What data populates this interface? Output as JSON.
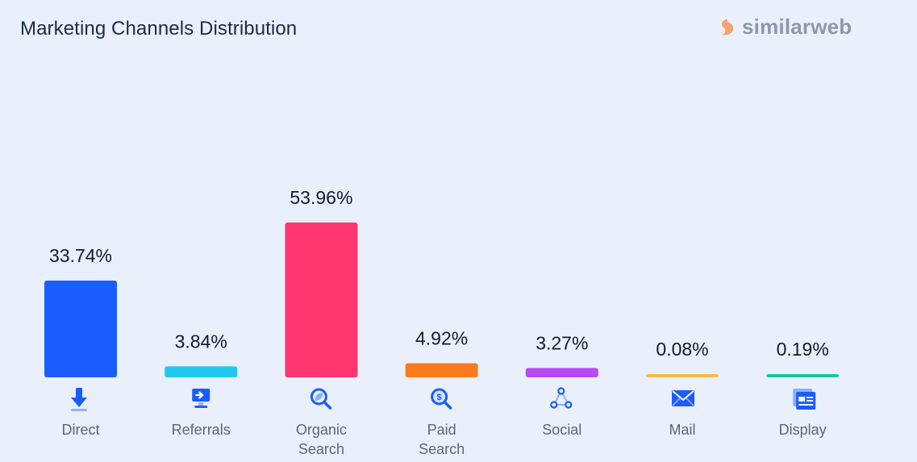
{
  "header": {
    "title": "Marketing Channels Distribution",
    "brand": "similarweb",
    "brand_colors": [
      "#f4a36e",
      "#8d98ad"
    ]
  },
  "chart_data": {
    "type": "bar",
    "title": "Marketing Channels Distribution",
    "xlabel": "",
    "ylabel": "",
    "ylim": [
      0,
      53.96
    ],
    "grid": false,
    "legend": "none",
    "categories": [
      [
        "Direct"
      ],
      [
        "Referrals"
      ],
      [
        "Organic",
        "Search"
      ],
      [
        "Paid",
        "Search"
      ],
      [
        "Social"
      ],
      [
        "Mail"
      ],
      [
        "Display"
      ]
    ],
    "values": [
      33.74,
      3.84,
      53.96,
      4.92,
      3.27,
      0.08,
      0.19
    ],
    "value_labels": [
      "33.74%",
      "3.84%",
      "53.96%",
      "4.92%",
      "3.27%",
      "0.08%",
      "0.19%"
    ],
    "colors": [
      "#1b5cff",
      "#22c7ee",
      "#ff3670",
      "#fa7b1d",
      "#b84af2",
      "#ffb94a",
      "#16c8a0"
    ],
    "icons": [
      "direct-arrow-icon",
      "referrals-monitor-icon",
      "organic-search-icon",
      "paid-search-icon",
      "social-network-icon",
      "mail-envelope-icon",
      "display-window-icon"
    ]
  }
}
